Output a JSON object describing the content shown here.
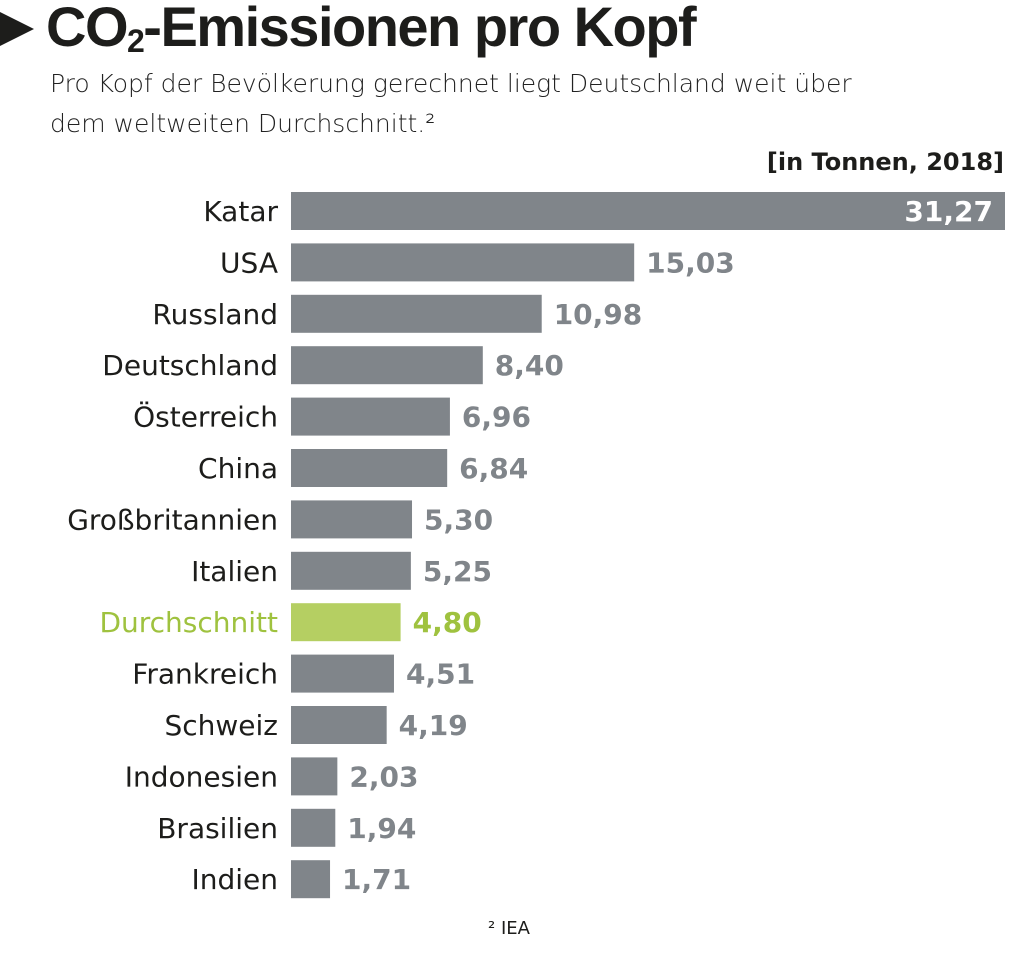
{
  "header": {
    "title_main": "CO",
    "title_sub": "2",
    "title_rest": "-Emissionen pro Kopf",
    "subtitle": "Pro Kopf der Bevölkerung gerechnet liegt Deutschland weit über dem weltweiten Durchschnitt.²",
    "unit": "[in Tonnen, 2018]"
  },
  "footer": {
    "source": "² IEA"
  },
  "colors": {
    "bar": "#80858a",
    "highlight_bar": "#b5cf62",
    "highlight_text": "#9fc23f",
    "text": "#1d1d1b"
  },
  "chart_data": {
    "type": "bar",
    "orientation": "horizontal",
    "title": "CO2-Emissionen pro Kopf",
    "unit": "Tonnen",
    "year": 2018,
    "categories": [
      "Katar",
      "USA",
      "Russland",
      "Deutschland",
      "Österreich",
      "China",
      "Großbritannien",
      "Italien",
      "Durchschnitt",
      "Frankreich",
      "Schweiz",
      "Indonesien",
      "Brasilien",
      "Indien"
    ],
    "values": [
      31.27,
      15.03,
      10.98,
      8.4,
      6.96,
      6.84,
      5.3,
      5.25,
      4.8,
      4.51,
      4.19,
      2.03,
      1.94,
      1.71
    ],
    "value_labels": [
      "31,27",
      "15,03",
      "10,98",
      "8,40",
      "6,96",
      "6,84",
      "5,30",
      "5,25",
      "4,80",
      "4,51",
      "4,19",
      "2,03",
      "1,94",
      "1,71"
    ],
    "highlight": "Durchschnitt",
    "xlim": [
      0,
      31.27
    ],
    "grid": false
  }
}
